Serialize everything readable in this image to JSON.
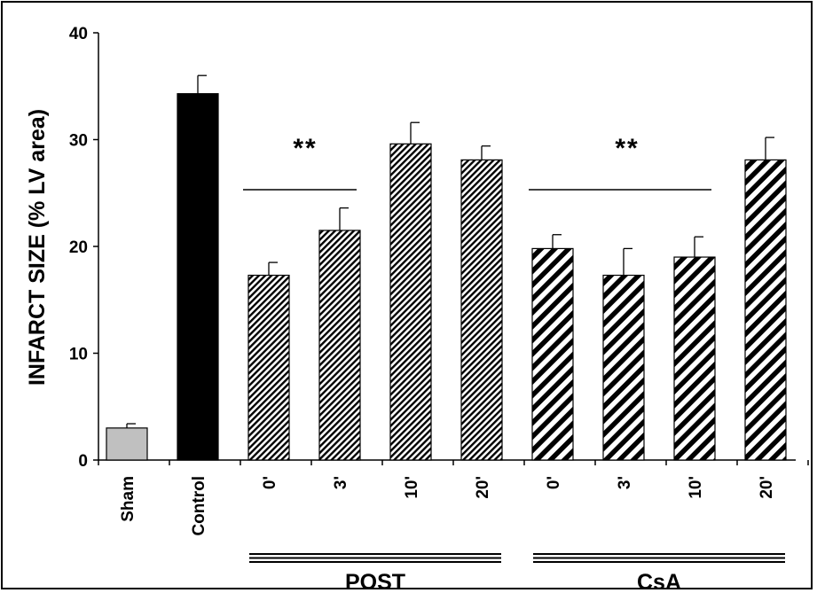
{
  "chart_data": {
    "type": "bar",
    "ylabel": "INFARCT SIZE (% LV area)",
    "xlabel": "",
    "ylim": [
      0,
      40
    ],
    "yticks": [
      "0",
      "10",
      "20",
      "30",
      "40"
    ],
    "categories": [
      "Sham",
      "Control",
      "0'",
      "3'",
      "10'",
      "20'",
      "0'",
      "3'",
      "10'",
      "20'"
    ],
    "values": [
      3.0,
      34.3,
      17.3,
      21.5,
      29.6,
      28.1,
      19.8,
      17.3,
      19.0,
      28.1
    ],
    "errors": [
      0.4,
      1.7,
      1.2,
      2.1,
      2.0,
      1.3,
      1.3,
      2.5,
      1.9,
      2.1
    ],
    "fills": [
      "gray",
      "black",
      "fine-hatch",
      "fine-hatch",
      "fine-hatch",
      "fine-hatch",
      "bold-hatch",
      "bold-hatch",
      "bold-hatch",
      "bold-hatch"
    ],
    "colors": {
      "sham": "#c0c0c0",
      "control": "#000000",
      "hatch": "#000000"
    },
    "groups": [
      {
        "label": "POST",
        "from": 2,
        "to": 5
      },
      {
        "label": "CsA",
        "from": 6,
        "to": 9
      }
    ],
    "annotations": [
      {
        "text": "**",
        "from": 2,
        "to": 3
      },
      {
        "text": "**",
        "from": 6,
        "to": 8
      }
    ],
    "grid": false,
    "legend": "none"
  }
}
